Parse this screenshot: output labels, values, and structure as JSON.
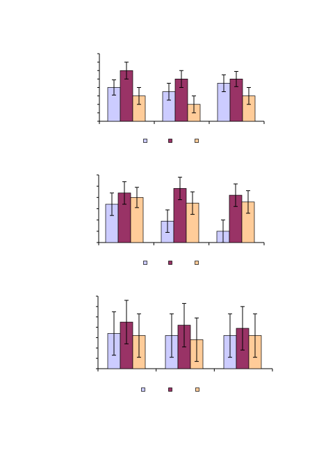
{
  "colors": {
    "series": [
      "#ccccff",
      "#993366",
      "#ffcc99"
    ],
    "axis": "#000000",
    "error_bar": "#000000",
    "background": "#ffffff"
  },
  "chart_data": [
    {
      "type": "bar",
      "title": "",
      "xlabel": "",
      "ylabel": "",
      "categories": [
        "",
        "",
        ""
      ],
      "ylim": [
        0,
        8
      ],
      "y_tick_count": 8,
      "grid": false,
      "legend_position": "bottom",
      "series": [
        {
          "name": "",
          "values": [
            4.0,
            3.5,
            4.5
          ],
          "errors": [
            0.9,
            1.0,
            1.0
          ]
        },
        {
          "name": "",
          "values": [
            6.0,
            5.0,
            5.0
          ],
          "errors": [
            1.0,
            1.0,
            0.9
          ]
        },
        {
          "name": "",
          "values": [
            3.0,
            2.0,
            3.0
          ],
          "errors": [
            1.0,
            1.0,
            1.0
          ]
        }
      ]
    },
    {
      "type": "bar",
      "title": "",
      "xlabel": "",
      "ylabel": "",
      "categories": [
        "",
        "",
        ""
      ],
      "ylim": [
        0,
        6
      ],
      "y_tick_count": 6,
      "grid": false,
      "legend_position": "bottom",
      "series": [
        {
          "name": "",
          "values": [
            3.4,
            1.9,
            1.0
          ],
          "errors": [
            1.0,
            1.0,
            1.0
          ]
        },
        {
          "name": "",
          "values": [
            4.4,
            4.8,
            4.2
          ],
          "errors": [
            1.0,
            1.0,
            1.0
          ]
        },
        {
          "name": "",
          "values": [
            4.0,
            3.5,
            3.6
          ],
          "errors": [
            0.9,
            1.0,
            1.0
          ]
        }
      ]
    },
    {
      "type": "bar",
      "title": "",
      "xlabel": "",
      "ylabel": "",
      "categories": [
        "",
        "",
        ""
      ],
      "ylim": [
        0,
        7
      ],
      "y_tick_count": 7,
      "grid": false,
      "legend_position": "bottom",
      "series": [
        {
          "name": "",
          "values": [
            3.4,
            3.2,
            3.2
          ],
          "errors": [
            2.1,
            2.1,
            2.1
          ]
        },
        {
          "name": "",
          "values": [
            4.5,
            4.2,
            3.9
          ],
          "errors": [
            2.1,
            2.1,
            2.1
          ]
        },
        {
          "name": "",
          "values": [
            3.2,
            2.8,
            3.2
          ],
          "errors": [
            2.1,
            2.1,
            2.1
          ]
        }
      ]
    }
  ]
}
